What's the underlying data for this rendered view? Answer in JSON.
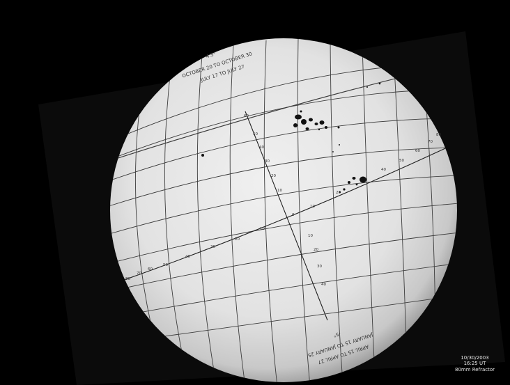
{
  "image": {
    "subject": "sun",
    "colors": {
      "background": "#000000",
      "disk": "#e4e4e4",
      "grid": "#3a3a3a",
      "spots": "#111111"
    }
  },
  "overlay_top": {
    "degree_label": "4.5°",
    "line1": "OCTOBER 20 TO OCTOBER 30",
    "line2": "JULY 17 TO JULY 27"
  },
  "overlay_bottom": {
    "degree_label": "-5°",
    "line1": "JANUARY 15 TO JANUARY 25",
    "line2": "APRIL 15 TO APRIL 27"
  },
  "grid_labels": {
    "upper_latitudes": [
      "60",
      "50",
      "40",
      "30",
      "20",
      "10"
    ],
    "upper_right": [
      "40",
      "50",
      "60",
      "70",
      "80"
    ],
    "lower": [
      "10",
      "20",
      "30",
      "40"
    ],
    "equator_left": [
      "80",
      "70",
      "60",
      "50",
      "40",
      "30",
      "20",
      "10"
    ],
    "center": [
      "0",
      "10",
      "20"
    ]
  },
  "caption": {
    "date": "10/30/2003",
    "time": "16:25 UT",
    "instrument": "80mm Refractor"
  }
}
